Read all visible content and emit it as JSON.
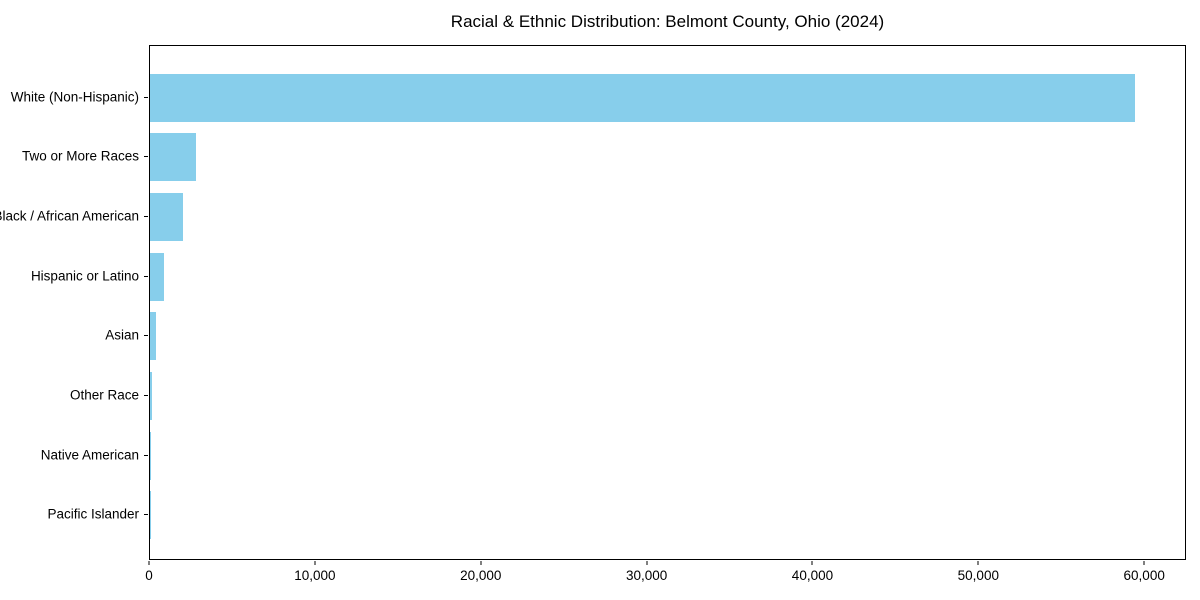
{
  "title": "Racial & Ethnic Distribution: Belmont County, Ohio (2024)",
  "chart_data": {
    "type": "bar",
    "orientation": "horizontal",
    "title": "Racial & Ethnic Distribution: Belmont County, Ohio (2024)",
    "categories": [
      "White (Non-Hispanic)",
      "Two or More Races",
      "Black / African American",
      "Hispanic or Latino",
      "Asian",
      "Other Race",
      "Native American",
      "Pacific Islander"
    ],
    "values": [
      59400,
      2800,
      1960,
      870,
      390,
      100,
      55,
      20
    ],
    "xlabel": "",
    "ylabel": "",
    "xlim": [
      0,
      62400
    ],
    "xticks": [
      {
        "value": 0,
        "label": "0"
      },
      {
        "value": 10000,
        "label": "10,000"
      },
      {
        "value": 20000,
        "label": "20,000"
      },
      {
        "value": 30000,
        "label": "30,000"
      },
      {
        "value": 40000,
        "label": "40,000"
      },
      {
        "value": 50000,
        "label": "50,000"
      },
      {
        "value": 60000,
        "label": "60,000"
      }
    ],
    "bar_color": "#87CEEB",
    "grid": false,
    "legend": null,
    "plot_border_color": "#000000",
    "background_color": "#ffffff"
  }
}
